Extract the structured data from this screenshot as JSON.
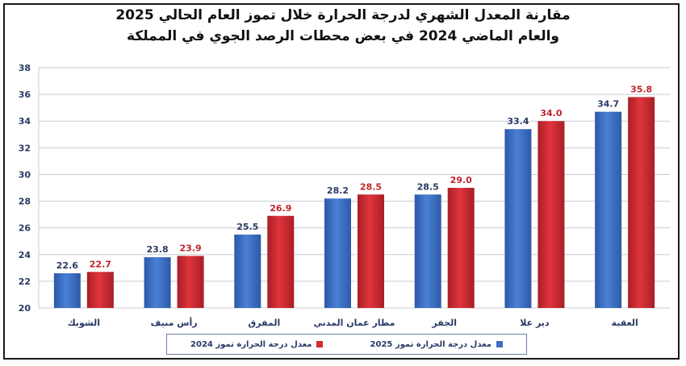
{
  "chart_data": {
    "type": "bar",
    "title_line1": "مقارنة المعدل الشهري لدرجة الحرارة خلال تموز العام الحالي 2025",
    "title_line2": "والعام الماضي 2024 في بعض محطات الرصد الجوي في المملكة",
    "categories": [
      "الشوبك",
      "رأس منيف",
      "المفرق",
      "مطار عمان المدني",
      "الجفر",
      "دير علا",
      "العقبة"
    ],
    "series": [
      {
        "name": "معدل درجة الحرارة تموز 2025",
        "color": "#3f6fc4",
        "values": [
          22.6,
          23.8,
          25.5,
          28.2,
          28.5,
          33.4,
          34.7
        ]
      },
      {
        "name": "معدل درجة الحرارة تموز 2024",
        "color": "#d22b33",
        "values": [
          22.7,
          23.9,
          26.9,
          28.5,
          29.0,
          34.0,
          35.8
        ]
      }
    ],
    "ylim": [
      20,
      38
    ],
    "yticks": [
      20,
      22,
      24,
      26,
      28,
      30,
      32,
      34,
      36,
      38
    ],
    "grid": true,
    "legend_position": "bottom",
    "xlabel": "",
    "ylabel": ""
  }
}
